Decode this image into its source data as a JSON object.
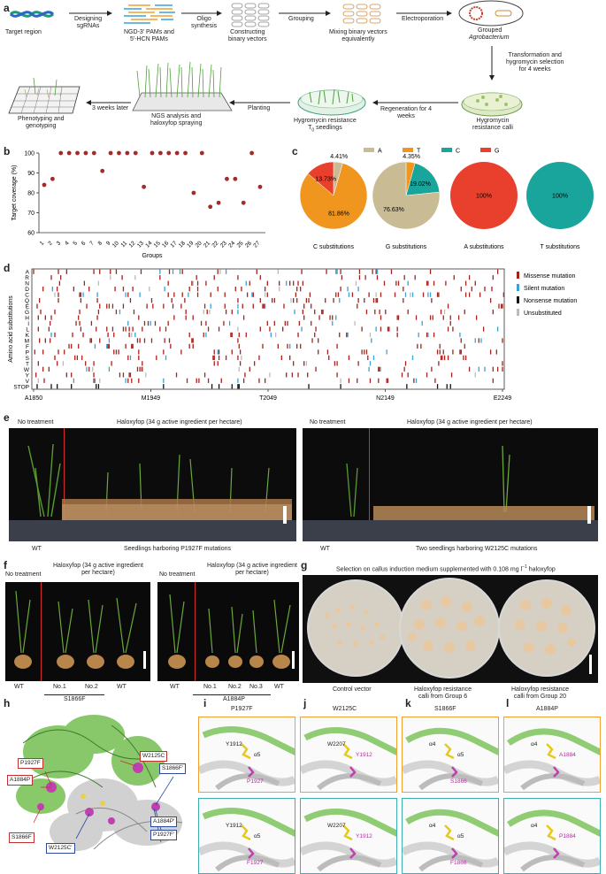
{
  "panels": {
    "a": "a",
    "b": "b",
    "c": "c",
    "d": "d",
    "e": "e",
    "f": "f",
    "g": "g",
    "h": "h",
    "i": "i",
    "j": "j",
    "k": "k",
    "l": "l"
  },
  "workflow": {
    "target_region": "Target region",
    "designing": "Designing\nsgRNAs",
    "pams": "NGD-3' PAMs and\n5'-HCN PAMs",
    "oligo": "Oligo\nsynthesis",
    "constructing": "Constructing\nbinary vectors",
    "grouping": "Grouping",
    "mixing": "Mixing binary vectors\nequivalently",
    "electroporation": "Electroporation",
    "grouped_agro": "Grouped",
    "agrobacterium": "Agrobacterium",
    "transformation": "Transformation and\nhygromycin selection\nfor 4 weeks",
    "hygro_calli": "Hygromycin\nresistance calli",
    "regeneration": "Regeneration for 4\nweeks",
    "hygro_seedlings": "Hygromycin resistance\nT",
    "hygro_seedlings_sub": "0",
    "hygro_seedlings_end": " seedlings",
    "planting": "Planting",
    "ngs": "NGS analysis and\nhaloxyfop spraying",
    "three_weeks": "3 weeks later",
    "phenotyping": "Phenotyping and\ngenotyping"
  },
  "chart_b": {
    "type": "scatter",
    "ylabel": "Target coverage (%)",
    "xlabel": "Groups",
    "ylim": [
      60,
      100
    ],
    "yticks": [
      "60",
      "70",
      "80",
      "90",
      "100"
    ],
    "categories": [
      "1",
      "2",
      "3",
      "4",
      "5",
      "6",
      "7",
      "8",
      "9",
      "10",
      "11",
      "12",
      "13",
      "14",
      "15",
      "16",
      "17",
      "18",
      "19",
      "20",
      "21",
      "22",
      "23",
      "24",
      "25",
      "26",
      "27"
    ],
    "values": [
      84,
      87,
      100,
      100,
      100,
      100,
      100,
      91,
      100,
      100,
      100,
      100,
      83,
      100,
      100,
      100,
      100,
      100,
      80,
      100,
      73,
      75,
      87,
      87,
      75,
      100,
      83
    ],
    "color": "#a52a2a"
  },
  "chart_c": {
    "type": "pie",
    "legend": [
      {
        "name": "A",
        "color": "#c9bb94"
      },
      {
        "name": "T",
        "color": "#f0961e"
      },
      {
        "name": "C",
        "color": "#19a59b"
      },
      {
        "name": "G",
        "color": "#e8402c"
      }
    ],
    "pies": [
      {
        "title": "C substitutions",
        "slices": [
          {
            "label": "4.41%",
            "value": 4.41,
            "color": "#c9bb94"
          },
          {
            "label": "81.86%",
            "value": 81.86,
            "color": "#f0961e"
          },
          {
            "label": "13.73%",
            "value": 13.73,
            "color": "#e8402c"
          }
        ]
      },
      {
        "title": "G substitutions",
        "slices": [
          {
            "label": "4.35%",
            "value": 4.35,
            "color": "#f0961e"
          },
          {
            "label": "19.02%",
            "value": 19.02,
            "color": "#19a59b"
          },
          {
            "label": "76.63%",
            "value": 76.63,
            "color": "#c9bb94"
          }
        ]
      },
      {
        "title": "A substitutions",
        "slices": [
          {
            "label": "100%",
            "value": 100,
            "color": "#e8402c"
          }
        ]
      },
      {
        "title": "T substitutions",
        "slices": [
          {
            "label": "100%",
            "value": 100,
            "color": "#19a59b"
          }
        ]
      }
    ]
  },
  "chart_d": {
    "type": "heatmap",
    "ylabel": "Amino acid substitutions",
    "rows": [
      "A",
      "R",
      "N",
      "D",
      "C",
      "Q",
      "E",
      "G",
      "H",
      "I",
      "L",
      "K",
      "M",
      "F",
      "P",
      "S",
      "T",
      "W",
      "Y",
      "V",
      "STOP"
    ],
    "xticks": [
      "A1850",
      "M1949",
      "T2049",
      "N2149",
      "E2249"
    ],
    "legend": [
      {
        "name": "Missense mutation",
        "color": "#a8201a"
      },
      {
        "name": "Silent mutation",
        "color": "#3aa0d8"
      },
      {
        "name": "Nonsense mutation",
        "color": "#111111"
      },
      {
        "name": "Unsubstituted",
        "color": "#bbbbbb"
      }
    ]
  },
  "panel_e": {
    "left_no_treat": "No treatment",
    "left_treat": "Haloxyfop (34 g active ingredient per hectare)",
    "left_wt": "WT",
    "left_caption": "Seedlings harboring P1927F mutations",
    "right_no_treat": "No treatment",
    "right_treat": "Haloxyfop (34 g active ingredient per hectare)",
    "right_wt": "WT",
    "right_caption": "Two seedlings harboring W2125C mutations"
  },
  "panel_f": {
    "left_no_treat": "No treatment",
    "left_treat": "Haloxyfop (34 g active ingredient\nper hectare)",
    "left_labels": [
      "WT",
      "No.1",
      "No.2",
      "WT"
    ],
    "left_group": "S1866F",
    "right_no_treat": "No treatment",
    "right_treat": "Haloxyfop (34 g active ingredient\nper hectare)",
    "right_labels": [
      "WT",
      "No.1",
      "No.2",
      "No.3",
      "WT"
    ],
    "right_group": "A1884P"
  },
  "panel_g": {
    "title": "Selection on callus induction medium supplemented with 0.108 mg l",
    "title_sup": "−1",
    "title_end": " haloxyfop",
    "captions": [
      "Control vector",
      "Haloxyfop resistance\ncalli from Group 6",
      "Haloxyfop resistance\ncalli from Group 20"
    ]
  },
  "panel_h": {
    "labels": [
      "P1927F",
      "A1884P",
      "S1866F",
      "W2125C'",
      "W2125C",
      "S1866F'",
      "A1884P'",
      "P1927F'"
    ]
  },
  "structures": [
    {
      "title": "P1927F",
      "labels_top": [
        "Y1912",
        "α5",
        "P1927"
      ],
      "labels_bot": [
        "Y1912",
        "α5",
        "F1927"
      ]
    },
    {
      "title": "W2125C",
      "labels_top": [
        "W2207",
        "Y1912"
      ],
      "labels_bot": [
        "W2207",
        "Y1912"
      ]
    },
    {
      "title": "S1866F",
      "labels_top": [
        "α4",
        "α5",
        "S1866"
      ],
      "labels_bot": [
        "α4",
        "α5",
        "F1866"
      ]
    },
    {
      "title": "A1884P",
      "labels_top": [
        "α4",
        "A1884"
      ],
      "labels_bot": [
        "α4",
        "P1884"
      ]
    }
  ],
  "colors": {
    "accent_red": "#a52a2a",
    "orange_frame": "#f0a030",
    "teal_frame": "#3bb0b0",
    "protein_green": "#7cc35a"
  }
}
